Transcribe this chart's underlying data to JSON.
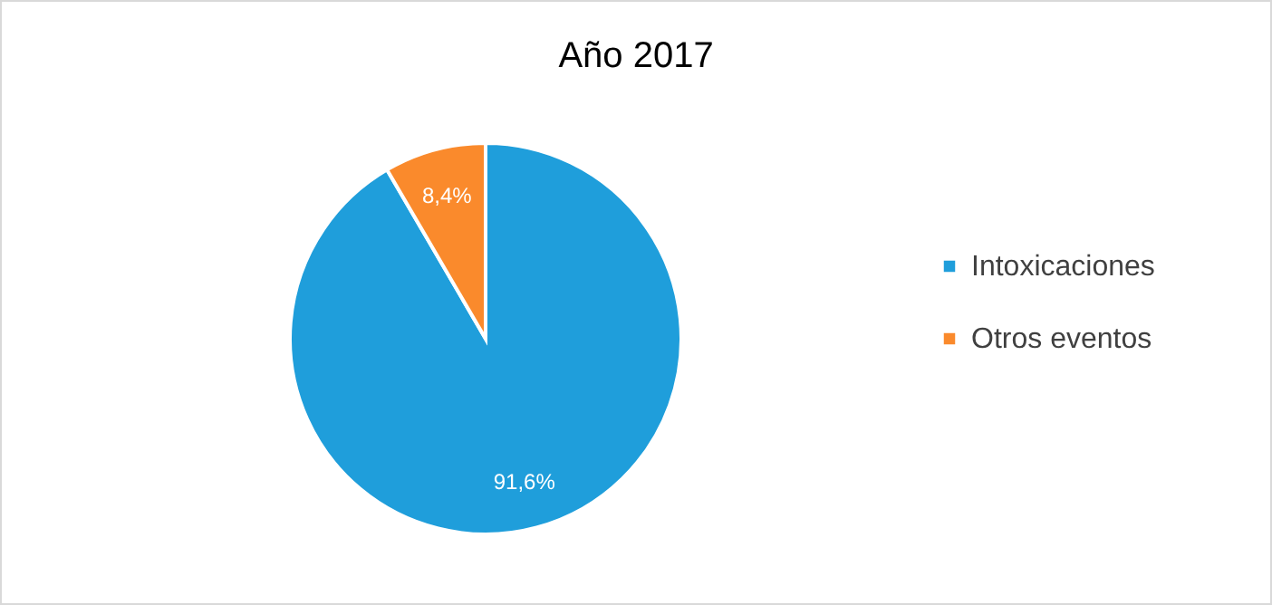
{
  "chart_data": {
    "type": "pie",
    "title": "Año 2017",
    "categories": [
      "Intoxicaciones",
      "Otros eventos"
    ],
    "values": [
      91.6,
      8.4
    ],
    "colors": [
      "#1f9edb",
      "#fa8a2c"
    ],
    "value_labels": [
      "91,6%",
      "8,4%"
    ],
    "legend": "right"
  }
}
